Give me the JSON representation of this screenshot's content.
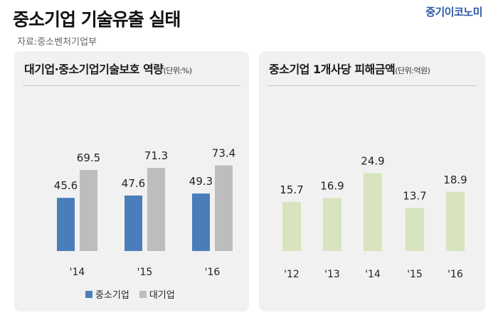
{
  "header": {
    "title": "중소기업 기술유출 실태",
    "source": "자료:중소벤처기업부",
    "brand": "중기이코노미"
  },
  "colors": {
    "sme": "#4a7ebb",
    "large": "#bdbdbd",
    "damage": "#d7e4bd",
    "brand": "#2a58a8"
  },
  "chart_data": [
    {
      "type": "bar",
      "title": "대기업·중소기업기술보호 역량",
      "unit": "(단위:%)",
      "categories": [
        "'14",
        "'15",
        "'16"
      ],
      "series": [
        {
          "name": "중소기업",
          "values": [
            45.6,
            47.6,
            49.3
          ]
        },
        {
          "name": "대기업",
          "values": [
            69.5,
            71.3,
            73.4
          ]
        }
      ],
      "legend": "bottom-center",
      "grid": false
    },
    {
      "type": "bar",
      "title": "중소기업 1개사당 피해금액",
      "unit": "(단위:억원)",
      "categories": [
        "'12",
        "'13",
        "'14",
        "'15",
        "'16"
      ],
      "values": [
        15.7,
        16.9,
        24.9,
        13.7,
        18.9
      ],
      "grid": false
    }
  ]
}
